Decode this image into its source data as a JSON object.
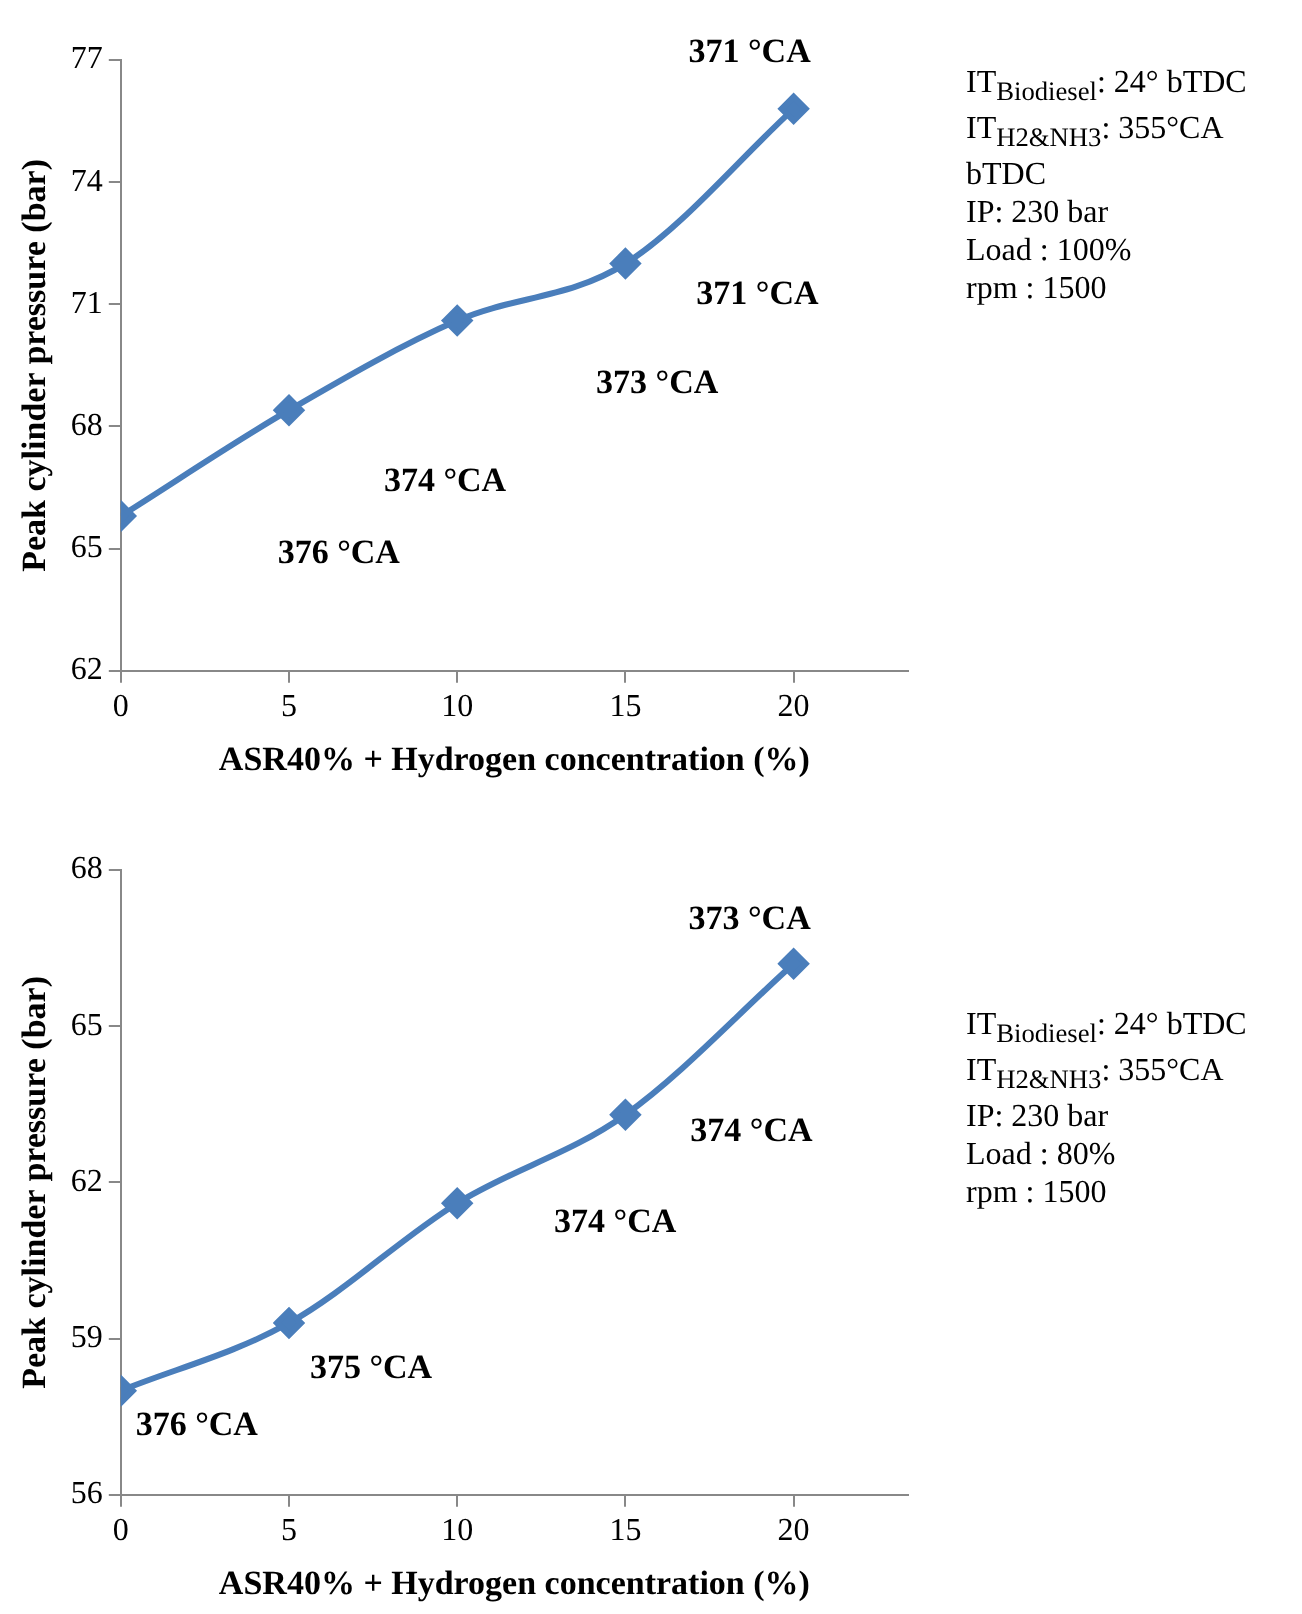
{
  "chart_data": [
    {
      "type": "line",
      "xlabel": "ASR40% + Hydrogen concentration (%)",
      "ylabel": "Peak cylinder pressure (bar)",
      "x": [
        0,
        5,
        10,
        15,
        20
      ],
      "series": [
        {
          "color": "#4a7ebb",
          "values": [
            65.8,
            68.4,
            70.6,
            72.0,
            75.8
          ]
        }
      ],
      "xlim": [
        0,
        23.4
      ],
      "xticks": [
        0,
        5,
        10,
        15,
        20
      ],
      "ylim": [
        62,
        77
      ],
      "yticks": [
        62,
        65,
        68,
        71,
        74,
        77
      ],
      "grid": false,
      "legend": false,
      "marker": "diamond",
      "line_style": "solid",
      "annotations": [
        "376 °CA",
        "374 °CA",
        "373 °CA",
        "371 °CA",
        "371 °CA",
        "IT$_{Biodiesel}$: 24° bTDC",
        "IT$_{H2&NH3}$: 355°CA bTDC",
        "IP: 230 bar",
        "Load : 100%",
        "rpm : 1500"
      ]
    },
    {
      "type": "line",
      "xlabel": "ASR40% + Hydrogen concentration (%)",
      "ylabel": "Peak cylinder pressure (bar)",
      "x": [
        0,
        5,
        10,
        15,
        20
      ],
      "series": [
        {
          "color": "#4a7ebb",
          "values": [
            58.0,
            59.3,
            61.6,
            63.3,
            66.2
          ]
        }
      ],
      "xlim": [
        0,
        23.4
      ],
      "xticks": [
        0,
        5,
        10,
        15,
        20
      ],
      "ylim": [
        56,
        68
      ],
      "yticks": [
        56,
        59,
        62,
        65,
        68
      ],
      "grid": false,
      "legend": false,
      "marker": "diamond",
      "line_style": "solid",
      "annotations": [
        "376 °CA",
        "375 °CA",
        "374 °CA",
        "374 °CA",
        "373 °CA",
        "IT$_{Biodiesel}$: 24° bTDC",
        "IT$_{H2&NH3}$: 355°CA",
        "IP: 230 bar",
        "Load : 80%",
        "rpm : 1500"
      ]
    }
  ]
}
